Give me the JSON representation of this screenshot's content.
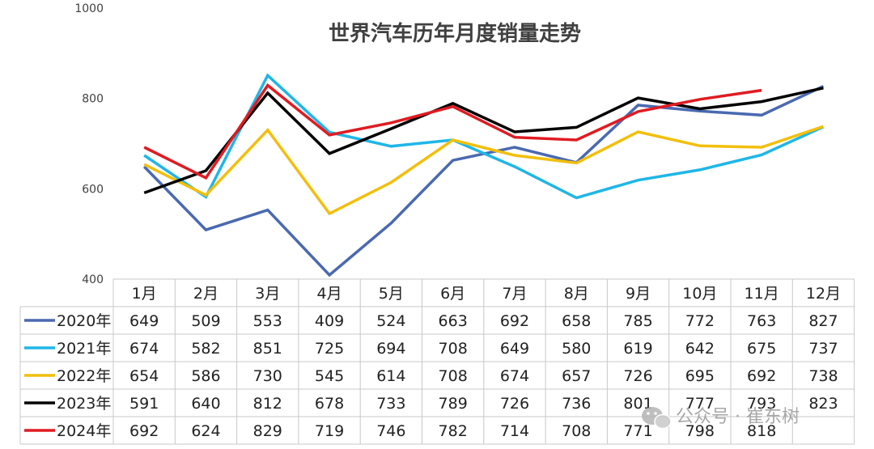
{
  "chart_data": {
    "type": "line",
    "title": "世界汽车历年月度销量走势",
    "categories": [
      "1月",
      "2月",
      "3月",
      "4月",
      "5月",
      "6月",
      "7月",
      "8月",
      "9月",
      "10月",
      "11月",
      "12月"
    ],
    "ylim": [
      400,
      1000
    ],
    "yticks": [
      400,
      600,
      800,
      1000
    ],
    "grid": false,
    "legend": "table-left",
    "series": [
      {
        "name": "2020年",
        "color": "#4a69b0",
        "values": [
          649,
          509,
          553,
          409,
          524,
          663,
          692,
          658,
          785,
          772,
          763,
          827
        ]
      },
      {
        "name": "2021年",
        "color": "#1fb6e8",
        "values": [
          674,
          582,
          851,
          725,
          694,
          708,
          649,
          580,
          619,
          642,
          675,
          737
        ]
      },
      {
        "name": "2022年",
        "color": "#f2bf0d",
        "values": [
          654,
          586,
          730,
          545,
          614,
          708,
          674,
          657,
          726,
          695,
          692,
          738
        ]
      },
      {
        "name": "2023年",
        "color": "#000000",
        "values": [
          591,
          640,
          812,
          678,
          733,
          789,
          726,
          736,
          801,
          777,
          793,
          823
        ]
      },
      {
        "name": "2024年",
        "color": "#e01b22",
        "values": [
          692,
          624,
          829,
          719,
          746,
          782,
          714,
          708,
          771,
          798,
          818,
          null
        ]
      }
    ]
  },
  "watermark": {
    "icon": "wechat-icon",
    "text": "公众号 · 崔东树"
  }
}
